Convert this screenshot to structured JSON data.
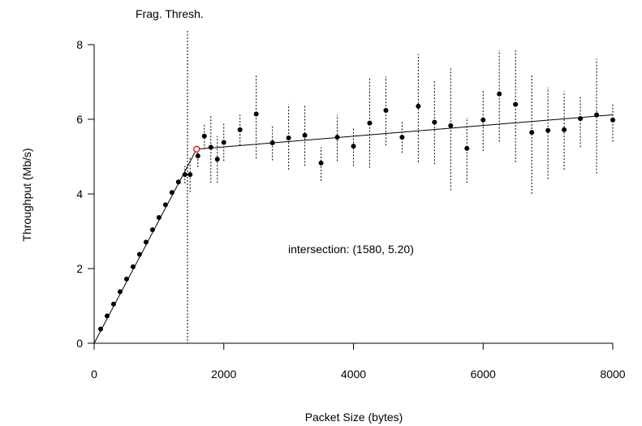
{
  "chart_data": {
    "type": "scatter",
    "xlabel": "Packet Size (bytes)",
    "ylabel": "Throughput (Mb/s)",
    "xlim": [
      0,
      8000
    ],
    "ylim": [
      0,
      8
    ],
    "xticks": [
      0,
      2000,
      4000,
      6000,
      8000
    ],
    "yticks": [
      0,
      2,
      4,
      6,
      8
    ],
    "grid": false,
    "threshold": {
      "label": "Frag. Thresh.",
      "x": 1440
    },
    "annotation": "intersection: (1580, 5.20)",
    "intersection": {
      "x": 1580,
      "y": 5.2
    },
    "fit_lines": [
      {
        "points": [
          [
            0,
            0
          ],
          [
            1580,
            5.2
          ]
        ]
      },
      {
        "points": [
          [
            1580,
            5.2
          ],
          [
            8000,
            6.12
          ]
        ]
      }
    ],
    "points": [
      {
        "x": 100,
        "y": 0.38
      },
      {
        "x": 200,
        "y": 0.73
      },
      {
        "x": 300,
        "y": 1.05
      },
      {
        "x": 400,
        "y": 1.38
      },
      {
        "x": 500,
        "y": 1.72
      },
      {
        "x": 600,
        "y": 2.05
      },
      {
        "x": 700,
        "y": 2.38
      },
      {
        "x": 800,
        "y": 2.71
      },
      {
        "x": 900,
        "y": 3.04
      },
      {
        "x": 1000,
        "y": 3.37
      },
      {
        "x": 1100,
        "y": 3.71
      },
      {
        "x": 1200,
        "y": 4.04
      },
      {
        "x": 1300,
        "y": 4.32
      },
      {
        "x": 1400,
        "y": 4.52,
        "err": [
          4.28,
          4.75
        ]
      },
      {
        "x": 1480,
        "y": 4.52,
        "err": [
          4.05,
          4.98
        ]
      },
      {
        "x": 1600,
        "y": 5.02,
        "err": [
          4.72,
          5.3
        ]
      },
      {
        "x": 1700,
        "y": 5.55,
        "err": [
          5.2,
          5.9
        ]
      },
      {
        "x": 1800,
        "y": 5.25,
        "err": [
          4.3,
          6.1
        ]
      },
      {
        "x": 1900,
        "y": 4.93,
        "err": [
          4.3,
          5.55
        ]
      },
      {
        "x": 2000,
        "y": 5.38,
        "err": [
          4.88,
          5.92
        ]
      },
      {
        "x": 2250,
        "y": 5.72,
        "err": [
          5.3,
          6.12
        ]
      },
      {
        "x": 2500,
        "y": 6.14,
        "err": [
          4.95,
          7.2
        ]
      },
      {
        "x": 2750,
        "y": 5.37,
        "err": [
          4.9,
          5.85
        ]
      },
      {
        "x": 3000,
        "y": 5.5,
        "err": [
          4.65,
          6.4
        ]
      },
      {
        "x": 3250,
        "y": 5.57,
        "err": [
          4.75,
          6.38
        ]
      },
      {
        "x": 3500,
        "y": 4.83,
        "err": [
          4.35,
          5.25
        ]
      },
      {
        "x": 3750,
        "y": 5.52,
        "err": [
          4.88,
          6.12
        ]
      },
      {
        "x": 4000,
        "y": 5.28,
        "err": [
          4.75,
          5.78
        ]
      },
      {
        "x": 4250,
        "y": 5.9,
        "err": [
          4.7,
          7.1
        ]
      },
      {
        "x": 4500,
        "y": 6.24,
        "err": [
          5.3,
          7.15
        ]
      },
      {
        "x": 4750,
        "y": 5.52,
        "err": [
          5.1,
          5.95
        ]
      },
      {
        "x": 5000,
        "y": 6.35,
        "err": [
          4.85,
          7.75
        ]
      },
      {
        "x": 5250,
        "y": 5.92,
        "err": [
          4.8,
          7.05
        ]
      },
      {
        "x": 5500,
        "y": 5.83,
        "err": [
          4.1,
          7.4
        ]
      },
      {
        "x": 5750,
        "y": 5.22,
        "err": [
          4.3,
          6.05
        ]
      },
      {
        "x": 6000,
        "y": 5.98,
        "err": [
          5.15,
          6.78
        ]
      },
      {
        "x": 6250,
        "y": 6.68,
        "err": [
          5.4,
          7.85
        ]
      },
      {
        "x": 6500,
        "y": 6.4,
        "err": [
          4.85,
          7.85
        ]
      },
      {
        "x": 6750,
        "y": 5.65,
        "err": [
          4.0,
          7.2
        ]
      },
      {
        "x": 7000,
        "y": 5.7,
        "err": [
          4.4,
          6.85
        ]
      },
      {
        "x": 7250,
        "y": 5.72,
        "err": [
          4.65,
          6.75
        ]
      },
      {
        "x": 7500,
        "y": 6.02,
        "err": [
          5.25,
          6.62
        ]
      },
      {
        "x": 7750,
        "y": 6.12,
        "err": [
          4.55,
          7.62
        ]
      },
      {
        "x": 8000,
        "y": 5.98,
        "err": [
          5.4,
          6.42
        ]
      }
    ]
  }
}
